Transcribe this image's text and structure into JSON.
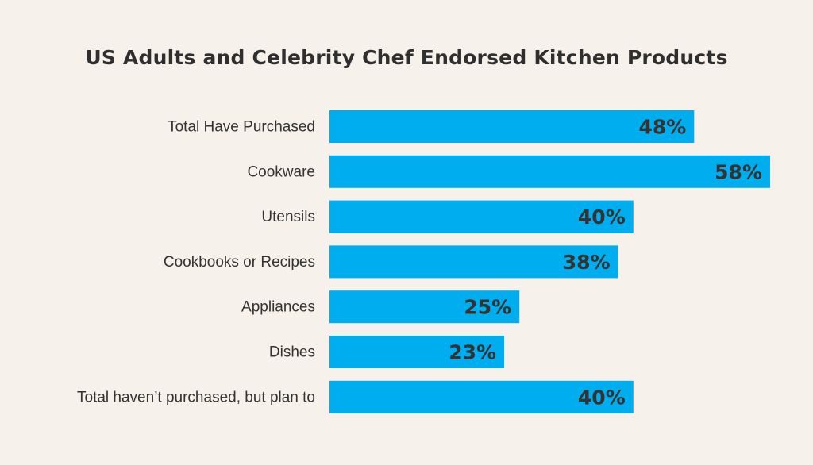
{
  "chart_data": {
    "type": "bar",
    "orientation": "horizontal",
    "title": "US Adults and Celebrity Chef Endorsed Kitchen Products",
    "categories": [
      "Total Have Purchased",
      "Cookware",
      "Utensils",
      "Cookbooks or Recipes",
      "Appliances",
      "Dishes",
      "Total haven’t purchased, but plan to"
    ],
    "values": [
      48,
      58,
      40,
      38,
      25,
      23,
      40
    ],
    "value_labels": [
      "48%",
      "58%",
      "40%",
      "38%",
      "25%",
      "23%",
      "40%"
    ],
    "unit": "%",
    "xlim": [
      0,
      58
    ],
    "grid": false,
    "legend": "none",
    "colors": {
      "bar": "#00aeef",
      "background": "#f7f1eb",
      "text": "#333333"
    }
  }
}
